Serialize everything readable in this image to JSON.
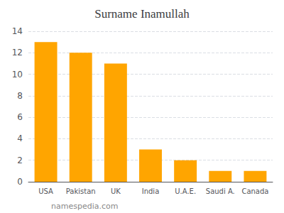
{
  "chart_data": {
    "type": "bar",
    "title": "Surname Inamullah",
    "categories": [
      "USA",
      "Pakistan",
      "UK",
      "India",
      "U.A.E.",
      "Saudi A.",
      "Canada"
    ],
    "values": [
      13,
      12,
      11,
      3,
      2,
      1,
      1
    ],
    "color": "#FFA500",
    "ylim": [
      0,
      14
    ],
    "yticks": [
      0,
      2,
      4,
      6,
      8,
      10,
      12,
      14
    ],
    "grid": true,
    "annotations": [
      "namespedia.com"
    ]
  }
}
